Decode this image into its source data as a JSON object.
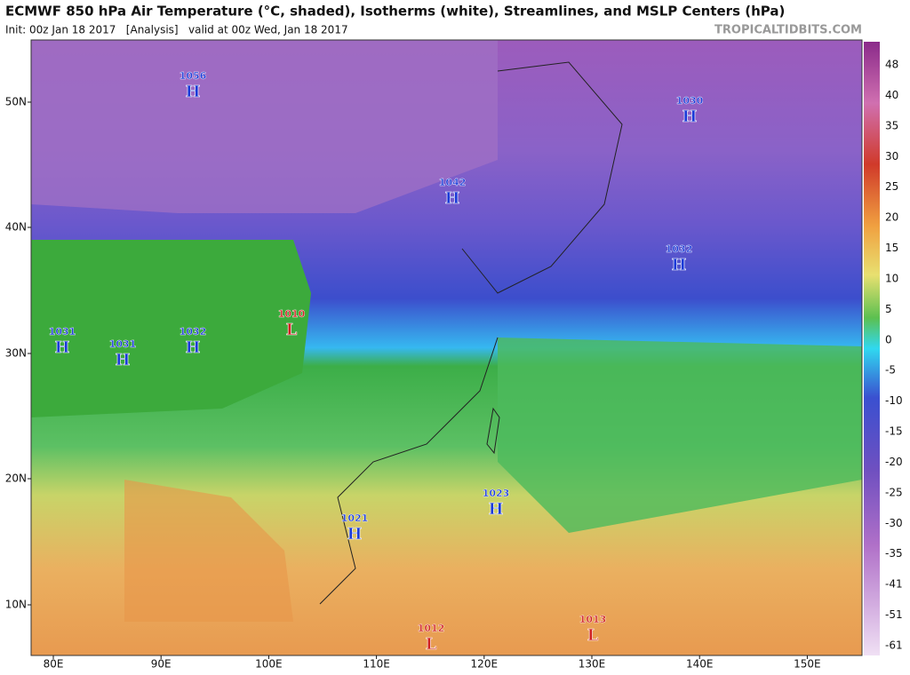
{
  "header": {
    "title": "ECMWF 850 hPa Air Temperature (°C, shaded), Isotherms (white), Streamlines, and MSLP Centers (hPa)",
    "subtitle": "Init: 00z Jan 18 2017   [Analysis]   valid at 00z Wed, Jan 18 2017",
    "site": "TROPICALTIDBITS.COM"
  },
  "map": {
    "lat_labels": [
      "50N",
      "40N",
      "30N",
      "20N",
      "10N"
    ],
    "lon_labels": [
      "80E",
      "90E",
      "100E",
      "110E",
      "120E",
      "130E",
      "140E",
      "150E"
    ]
  },
  "colorbar": {
    "labels": [
      48,
      40,
      35,
      30,
      25,
      20,
      15,
      10,
      5,
      0,
      -5,
      -10,
      -15,
      -20,
      -25,
      -30,
      -35,
      -41,
      -51,
      -61
    ]
  },
  "centers": [
    {
      "pressure": "1056",
      "letter": "H"
    },
    {
      "pressure": "1030",
      "letter": "H"
    },
    {
      "pressure": "1042",
      "letter": "H"
    },
    {
      "pressure": "1032",
      "letter": "H"
    },
    {
      "pressure": "1010",
      "letter": "L"
    },
    {
      "pressure": "1031",
      "letter": "H"
    },
    {
      "pressure": "1031",
      "letter": "H"
    },
    {
      "pressure": "1032",
      "letter": "H"
    },
    {
      "pressure": "1021",
      "letter": "H"
    },
    {
      "pressure": "1023",
      "letter": "H"
    },
    {
      "pressure": "1012",
      "letter": "L"
    },
    {
      "pressure": "1013",
      "letter": "L"
    }
  ]
}
